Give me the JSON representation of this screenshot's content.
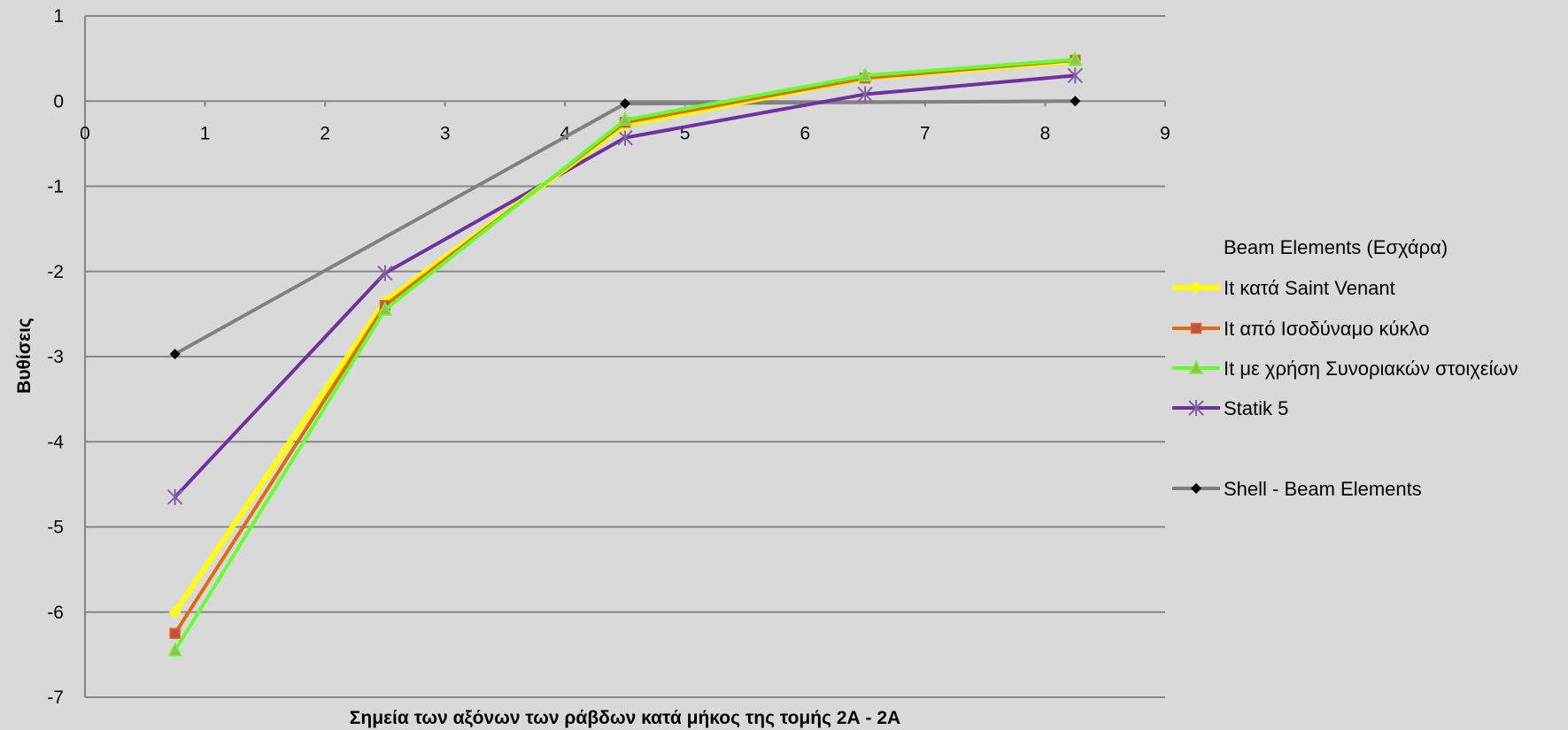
{
  "chart_data": {
    "type": "line",
    "xlabel": "Σημεία των αξόνων των ράβδων κατά μήκος της τομής 2Α - 2Α",
    "ylabel": "Βυθίσεις",
    "xlim": [
      0,
      9
    ],
    "ylim": [
      -7,
      1
    ],
    "x_ticks": [
      "0",
      "1",
      "2",
      "3",
      "4",
      "5",
      "6",
      "7",
      "8",
      "9"
    ],
    "y_ticks": [
      "1",
      "0",
      "-1",
      "-2",
      "-3",
      "-4",
      "-5",
      "-6",
      "-7"
    ],
    "grid": "horizontal",
    "legend_position": "right",
    "legend_group_title": "Beam Elements (Εσχάρα)",
    "series": [
      {
        "name": "It κατά Saint Venant",
        "color": "#ffff00",
        "marker": "diamond",
        "x": [
          0.75,
          2.5,
          4.5,
          6.5,
          8.25
        ],
        "y": [
          -6.0,
          -2.35,
          -0.28,
          0.27,
          0.47
        ]
      },
      {
        "name": "It από Ισοδύναμο κύκλο",
        "color": "#e36c0a",
        "marker": "square",
        "x": [
          0.75,
          2.5,
          4.5,
          6.5,
          8.25
        ],
        "y": [
          -6.25,
          -2.4,
          -0.25,
          0.27,
          0.48
        ]
      },
      {
        "name": "It με χρήση Συνοριακών στοιχείων",
        "color": "#66ff33",
        "marker": "triangle",
        "x": [
          0.75,
          2.5,
          4.5,
          6.5,
          8.25
        ],
        "y": [
          -6.45,
          -2.45,
          -0.22,
          0.3,
          0.49
        ]
      },
      {
        "name": "Statik 5",
        "color": "#7030a0",
        "marker": "star",
        "x": [
          0.75,
          2.5,
          4.5,
          6.5,
          8.25
        ],
        "y": [
          -4.65,
          -2.02,
          -0.43,
          0.08,
          0.3
        ]
      },
      {
        "name": "Shell - Beam Elements",
        "color": "#808080",
        "marker": "diamond-black",
        "x": [
          0.75,
          4.5,
          8.25
        ],
        "y": [
          -2.97,
          -0.03,
          0.0
        ]
      }
    ]
  }
}
